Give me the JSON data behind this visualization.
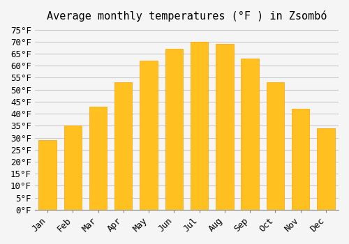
{
  "title": "Average monthly temperatures (°F ) in Zsombó",
  "months": [
    "Jan",
    "Feb",
    "Mar",
    "Apr",
    "May",
    "Jun",
    "Jul",
    "Aug",
    "Sep",
    "Oct",
    "Nov",
    "Dec"
  ],
  "values": [
    29,
    35,
    43,
    53,
    62,
    67,
    70,
    69,
    63,
    53,
    42,
    34
  ],
  "bar_color": "#FFC020",
  "bar_edge_color": "#FFA000",
  "background_color": "#f5f5f5",
  "grid_color": "#cccccc",
  "ylim": [
    0,
    76
  ],
  "yticks": [
    0,
    5,
    10,
    15,
    20,
    25,
    30,
    35,
    40,
    45,
    50,
    55,
    60,
    65,
    70,
    75
  ],
  "title_fontsize": 11,
  "tick_fontsize": 9,
  "tick_font": "monospace"
}
